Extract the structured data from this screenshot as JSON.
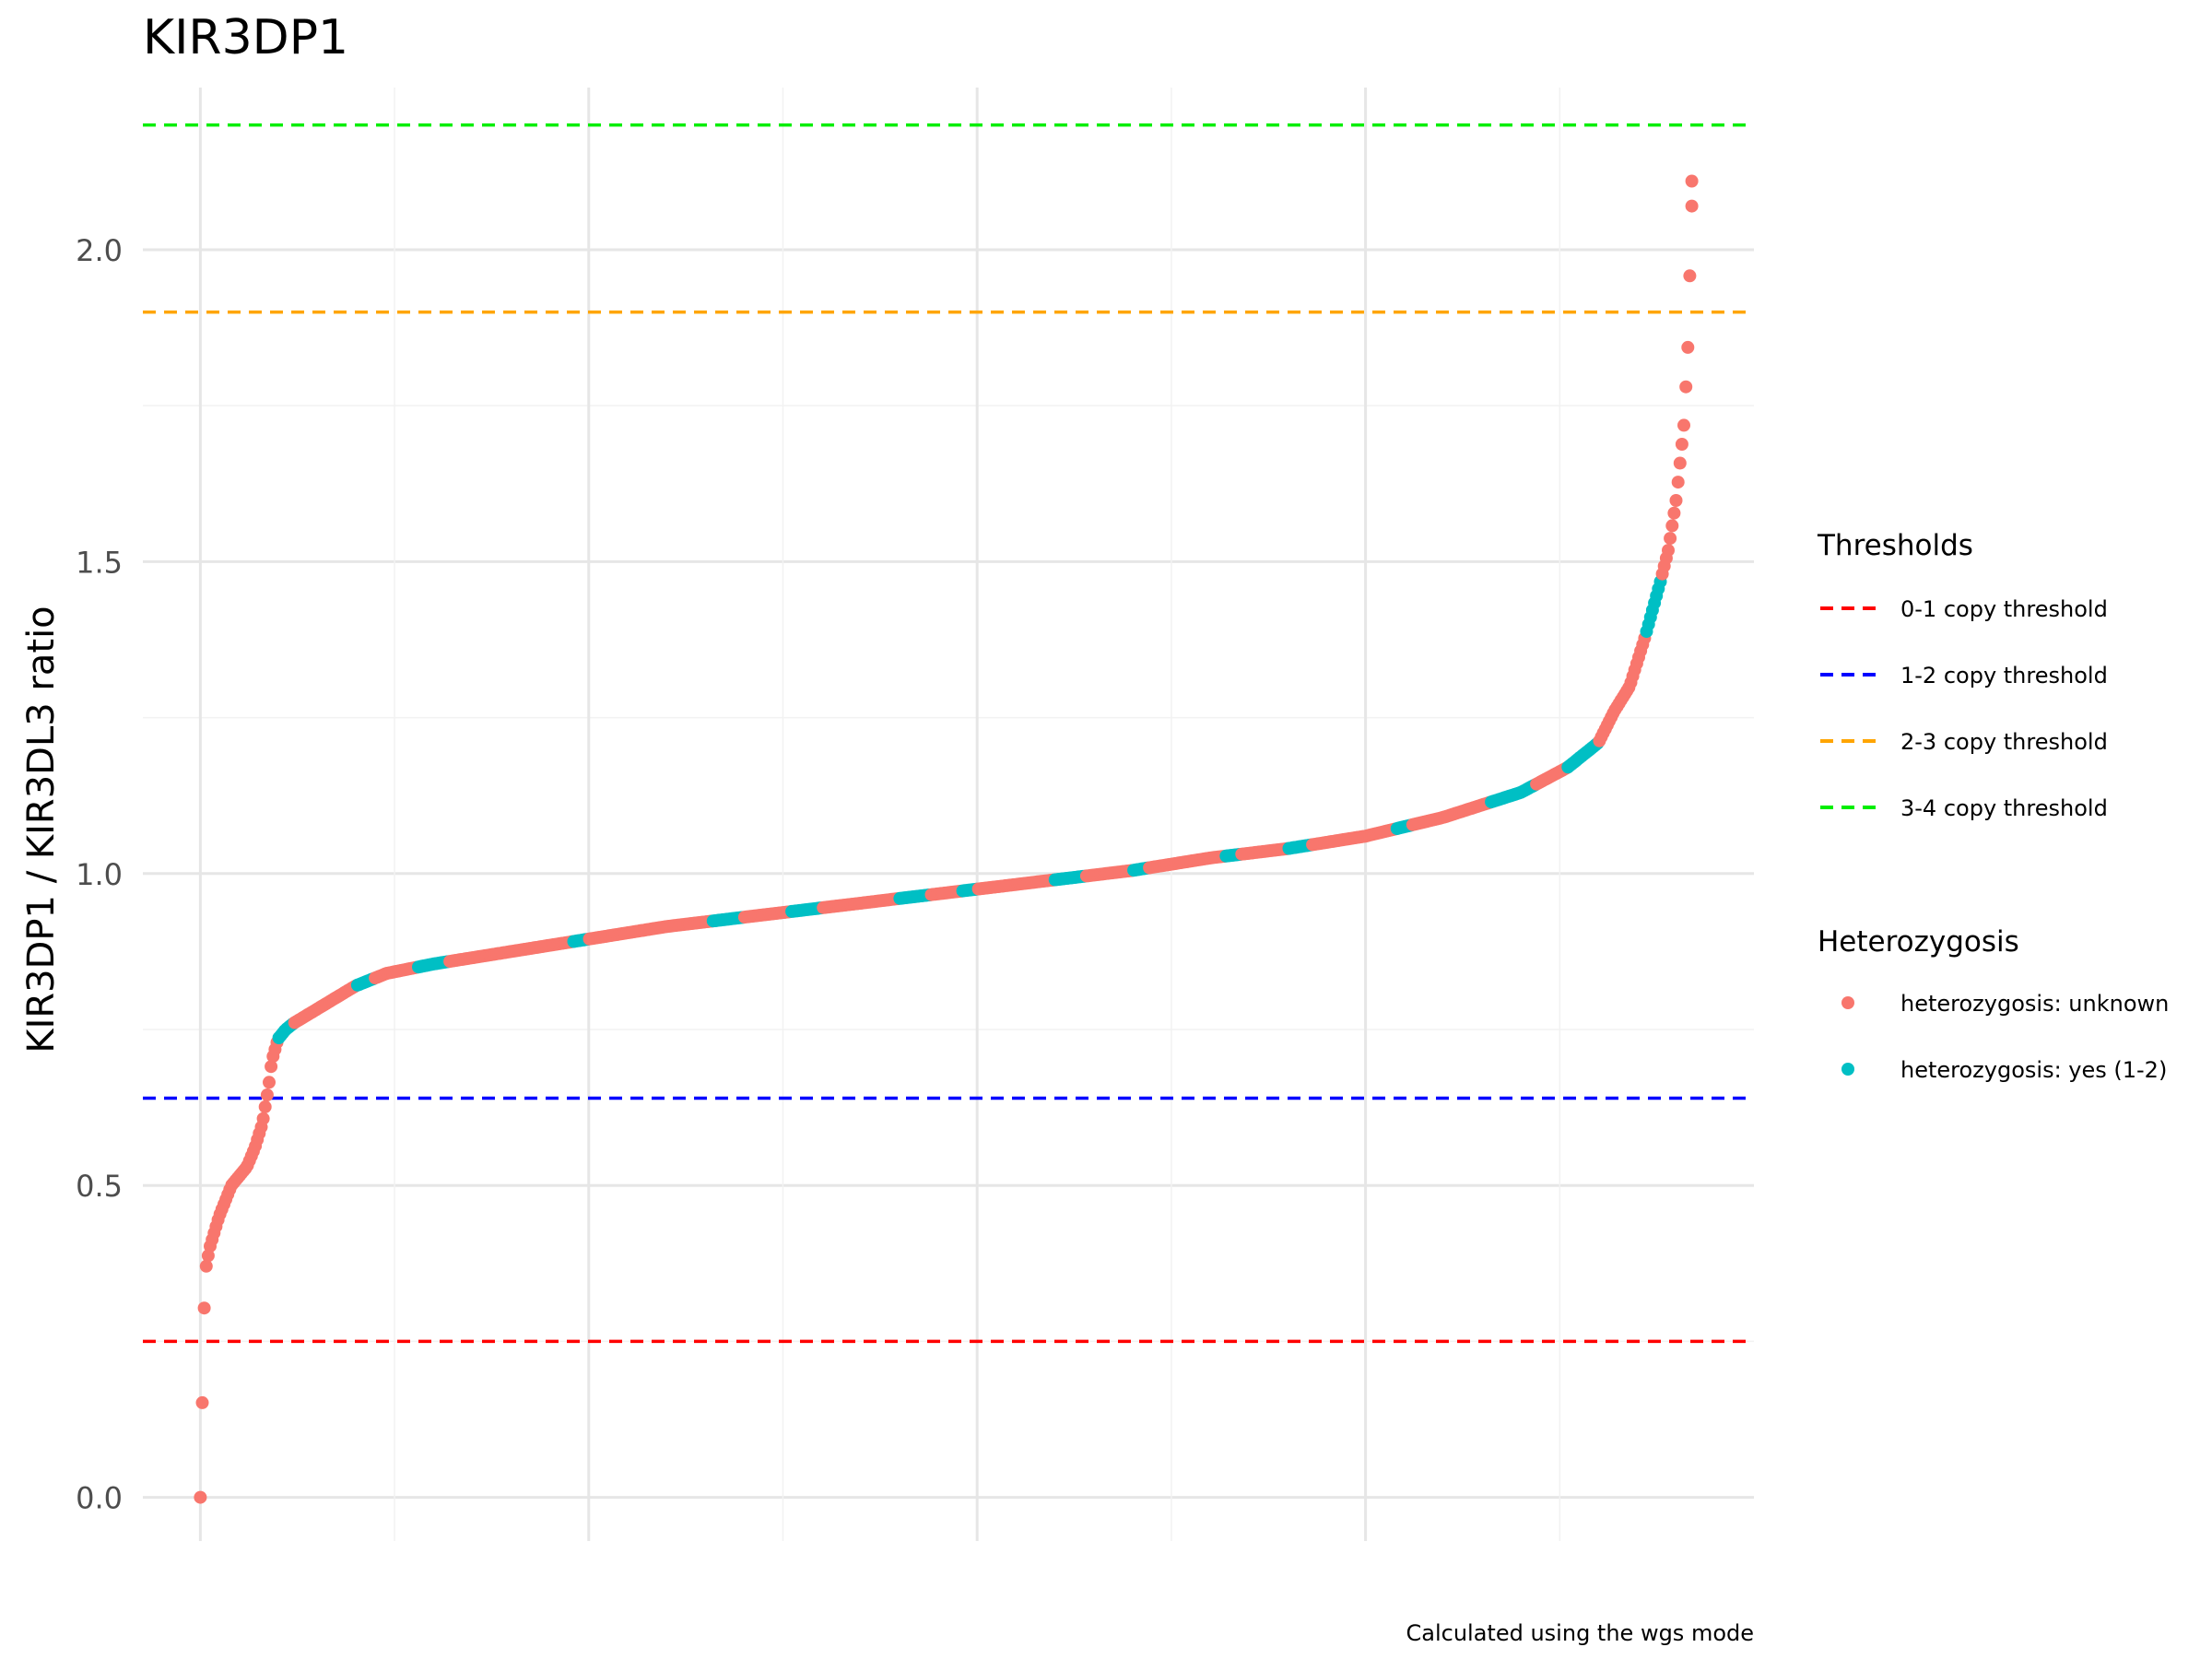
{
  "chart_data": {
    "type": "scatter",
    "title": "KIR3DP1",
    "ylabel": "KIR3DP1 / KIR3DL3 ratio",
    "xlabel": "",
    "caption": "Calculated using the wgs mode",
    "ylim": [
      -0.07,
      2.26
    ],
    "xlim": [
      -0.037,
      1.0
    ],
    "yticks": [
      {
        "value": 0.0,
        "label": "0.0"
      },
      {
        "value": 0.5,
        "label": "0.5"
      },
      {
        "value": 1.0,
        "label": "1.0"
      },
      {
        "value": 1.5,
        "label": "1.5"
      },
      {
        "value": 2.0,
        "label": "2.0"
      }
    ],
    "x_gridlines": [
      0,
      0.125,
      0.25,
      0.375,
      0.5,
      0.625,
      0.75,
      0.875
    ],
    "x_tick_labels": false,
    "grid": true,
    "thresholds": [
      {
        "name": "0-1 copy threshold",
        "value": 0.25,
        "color": "#ff0000"
      },
      {
        "name": "1-2 copy threshold",
        "value": 0.64,
        "color": "#0000ff"
      },
      {
        "name": "2-3 copy threshold",
        "value": 1.9,
        "color": "#ffa500"
      },
      {
        "name": "3-4 copy threshold",
        "value": 2.2,
        "color": "#00ee00"
      }
    ],
    "legend": {
      "placement": "right",
      "thresholds_title": "Thresholds",
      "heterozygosis_title": "Heterozygosis"
    },
    "series": [
      {
        "name": "heterozygosis: unknown",
        "color": "#f8766d"
      },
      {
        "name": "heterozygosis: yes (1-2)",
        "color": "#00bfc4"
      }
    ],
    "n_points": 760,
    "curve_x": [
      0.0,
      0.003,
      0.006,
      0.012,
      0.02,
      0.03,
      0.035,
      0.04,
      0.044,
      0.046,
      0.05,
      0.055,
      0.06,
      0.08,
      0.1,
      0.12,
      0.15,
      0.2,
      0.25,
      0.3,
      0.35,
      0.4,
      0.45,
      0.5,
      0.55,
      0.6,
      0.65,
      0.7,
      0.75,
      0.8,
      0.85,
      0.88,
      0.9,
      0.91,
      0.92,
      0.93,
      0.94,
      0.945,
      0.95,
      0.955,
      0.958,
      0.96
    ],
    "curve_y": [
      0.0,
      0.36,
      0.4,
      0.45,
      0.5,
      0.53,
      0.56,
      0.6,
      0.66,
      0.7,
      0.735,
      0.75,
      0.76,
      0.79,
      0.82,
      0.84,
      0.855,
      0.875,
      0.895,
      0.915,
      0.93,
      0.945,
      0.96,
      0.975,
      0.99,
      1.005,
      1.025,
      1.04,
      1.06,
      1.09,
      1.13,
      1.17,
      1.21,
      1.26,
      1.3,
      1.38,
      1.47,
      1.52,
      1.6,
      1.72,
      1.87,
      2.11
    ],
    "teal_ranges": [
      [
        0.05,
        0.06
      ],
      [
        0.1,
        0.112
      ],
      [
        0.14,
        0.16
      ],
      [
        0.24,
        0.25
      ],
      [
        0.33,
        0.35
      ],
      [
        0.38,
        0.4
      ],
      [
        0.45,
        0.47
      ],
      [
        0.49,
        0.5
      ],
      [
        0.55,
        0.57
      ],
      [
        0.6,
        0.61
      ],
      [
        0.66,
        0.67
      ],
      [
        0.7,
        0.715
      ],
      [
        0.77,
        0.78
      ],
      [
        0.83,
        0.86
      ],
      [
        0.88,
        0.9
      ],
      [
        0.93,
        0.94
      ]
    ]
  }
}
